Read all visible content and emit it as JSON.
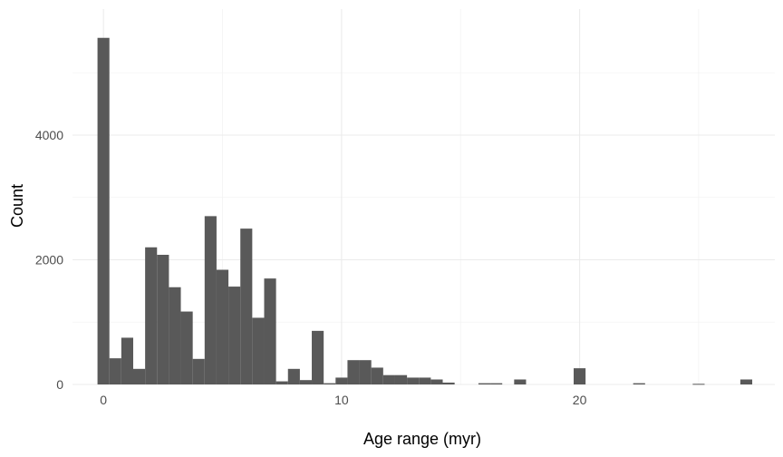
{
  "chart_data": {
    "type": "bar",
    "subtype": "histogram",
    "title": "",
    "xlabel": "Age range (myr)",
    "ylabel": "Count",
    "bin_width": 0.5,
    "x_start": -0.25,
    "xlim": [
      -1.3,
      28.2
    ],
    "ylim": [
      0,
      5600
    ],
    "xticks": [
      0,
      10,
      20
    ],
    "yticks": [
      0,
      2000,
      4000
    ],
    "xtick_labels": [
      "0",
      "10",
      "20"
    ],
    "ytick_labels": [
      "0",
      "2000",
      "4000"
    ],
    "grid": true,
    "legend": "none",
    "bar_color": "#595959",
    "values": [
      5560,
      420,
      750,
      250,
      2200,
      2080,
      1560,
      1170,
      410,
      2700,
      1840,
      1570,
      2500,
      1070,
      1700,
      50,
      250,
      70,
      860,
      20,
      110,
      390,
      390,
      270,
      150,
      150,
      110,
      110,
      80,
      30,
      0,
      0,
      20,
      20,
      0,
      80,
      0,
      0,
      0,
      0,
      260,
      0,
      0,
      0,
      0,
      20,
      0,
      0,
      0,
      0,
      10,
      0,
      0,
      0,
      80
    ]
  }
}
